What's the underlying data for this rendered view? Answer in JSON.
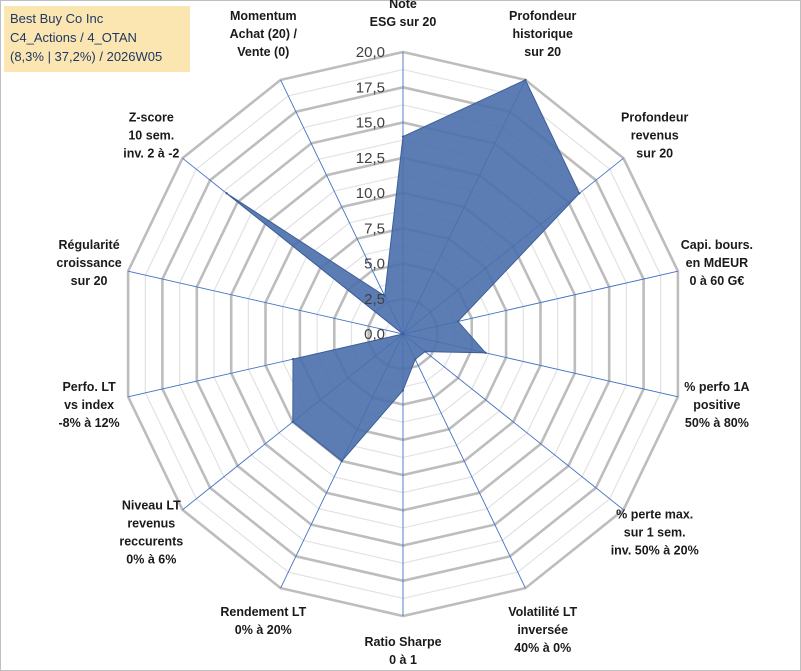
{
  "header": {
    "company": "Best Buy Co Inc",
    "classification": "C4_Actions / 4_OTAN",
    "summary": "(8,3% | 37,2%) / 2026W05"
  },
  "chart_data": {
    "type": "radar",
    "title": "Best Buy Co Inc",
    "rlim": [
      0,
      20
    ],
    "ticks": [
      "0,0",
      "2,5",
      "5,0",
      "7,5",
      "10,0",
      "12,5",
      "15,0",
      "17,5",
      "20,0"
    ],
    "tick_values": [
      0,
      2.5,
      5,
      7.5,
      10,
      12.5,
      15,
      17.5,
      20
    ],
    "axes": [
      {
        "lines": [
          "Note",
          "ESG sur 20"
        ]
      },
      {
        "lines": [
          "Profondeur",
          "historique",
          "sur 20"
        ]
      },
      {
        "lines": [
          "Profondeur",
          "revenus",
          "sur 20"
        ]
      },
      {
        "lines": [
          "Capi. bours.",
          "en MdEUR",
          "0 à 60 G€"
        ]
      },
      {
        "lines": [
          "% perfo 1A",
          "positive",
          "50% à 80%"
        ]
      },
      {
        "lines": [
          "% perte max.",
          "sur 1 sem.",
          "inv. 50% à 20%"
        ]
      },
      {
        "lines": [
          "Volatilité LT",
          "inversée",
          "40% à 0%"
        ]
      },
      {
        "lines": [
          "Ratio Sharpe",
          "0 à 1"
        ]
      },
      {
        "lines": [
          "Rendement LT",
          "0% à 20%"
        ]
      },
      {
        "lines": [
          "Niveau LT",
          "revenus",
          "reccurents",
          "0% à 6%"
        ]
      },
      {
        "lines": [
          "Perfo. LT",
          "vs index",
          "-8% à 12%"
        ]
      },
      {
        "lines": [
          "Régularité",
          "croissance",
          "sur 20"
        ]
      },
      {
        "lines": [
          "Z-score",
          "10 sem.",
          "inv. 2 à -2"
        ]
      },
      {
        "lines": [
          "Momentum",
          "Achat (20) /",
          "Vente (0)"
        ]
      }
    ],
    "series": [
      {
        "name": "Best Buy Co Inc",
        "values": [
          14,
          20,
          16,
          4,
          6,
          2,
          2,
          4,
          10,
          10,
          8,
          0,
          16,
          3
        ]
      }
    ],
    "colors": {
      "fill": "#4a6fac",
      "stroke": "#3d5e99",
      "grid": "#c8c8c8",
      "spoke": "#4472c4"
    }
  }
}
